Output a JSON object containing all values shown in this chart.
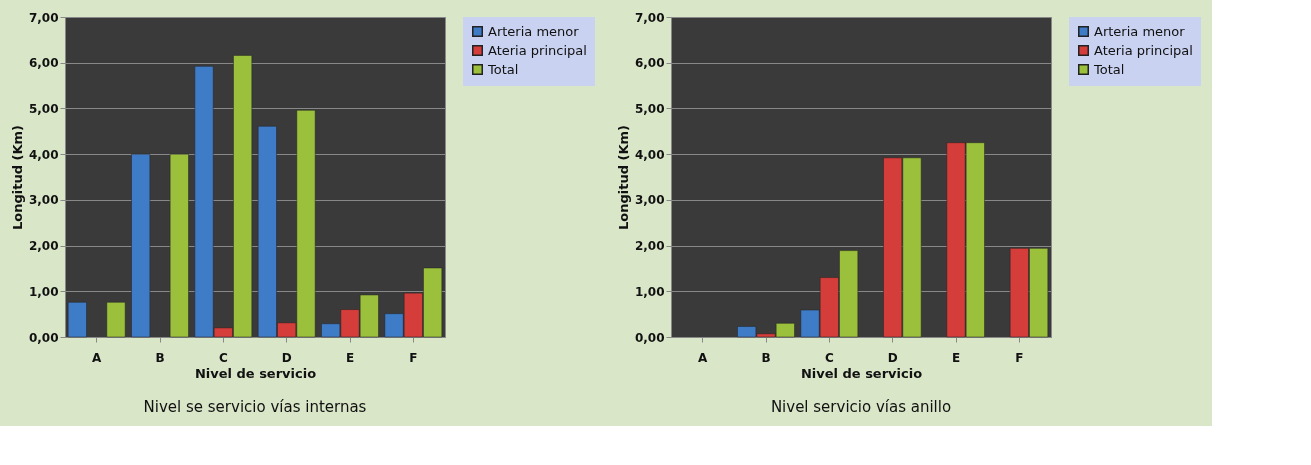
{
  "chart_data": [
    {
      "type": "bar",
      "title": "Nivel se servicio vías internas",
      "xlabel": "Nivel de servicio",
      "ylabel": "Longitud (Km)",
      "categories": [
        "A",
        "B",
        "C",
        "D",
        "E",
        "F"
      ],
      "series": [
        {
          "name": "Arteria menor",
          "color": "#3f7cc8",
          "values": [
            0.76,
            4.0,
            5.92,
            4.61,
            0.29,
            0.51
          ]
        },
        {
          "name": "Ateria principal",
          "color": "#d43d3a",
          "values": [
            null,
            null,
            0.2,
            0.31,
            0.6,
            0.96
          ]
        },
        {
          "name": "Total",
          "color": "#9bc13c",
          "values": [
            0.76,
            4.0,
            6.16,
            4.96,
            0.92,
            1.51
          ]
        }
      ],
      "ylim": [
        0,
        7
      ],
      "yticks": [
        {
          "value": 0,
          "label": "0,00"
        },
        {
          "value": 1,
          "label": "1,00"
        },
        {
          "value": 2,
          "label": "2,00"
        },
        {
          "value": 3,
          "label": "3,00"
        },
        {
          "value": 4,
          "label": "4,00"
        },
        {
          "value": 5,
          "label": "5,00"
        },
        {
          "value": 6,
          "label": "6,00"
        },
        {
          "value": 7,
          "label": "7,00"
        }
      ],
      "grid": "y",
      "legend": "right"
    },
    {
      "type": "bar",
      "title": "Nivel servicio vías anillo",
      "xlabel": "Nivel de servicio",
      "ylabel": "Longitud (Km)",
      "categories": [
        "A",
        "B",
        "C",
        "D",
        "E",
        "F"
      ],
      "series": [
        {
          "name": "Arteria menor",
          "color": "#3f7cc8",
          "values": [
            null,
            0.23,
            0.59,
            null,
            null,
            null
          ]
        },
        {
          "name": "Ateria principal",
          "color": "#d43d3a",
          "values": [
            null,
            0.07,
            1.3,
            3.92,
            4.25,
            1.94
          ]
        },
        {
          "name": "Total",
          "color": "#9bc13c",
          "values": [
            null,
            0.3,
            1.89,
            3.92,
            4.25,
            1.94
          ]
        }
      ],
      "ylim": [
        0,
        7
      ],
      "yticks": [
        {
          "value": 0,
          "label": "0,00"
        },
        {
          "value": 1,
          "label": "1,00"
        },
        {
          "value": 2,
          "label": "2,00"
        },
        {
          "value": 3,
          "label": "3,00"
        },
        {
          "value": 4,
          "label": "4,00"
        },
        {
          "value": 5,
          "label": "5,00"
        },
        {
          "value": 6,
          "label": "6,00"
        },
        {
          "value": 7,
          "label": "7,00"
        }
      ],
      "grid": "y",
      "legend": "right"
    }
  ]
}
